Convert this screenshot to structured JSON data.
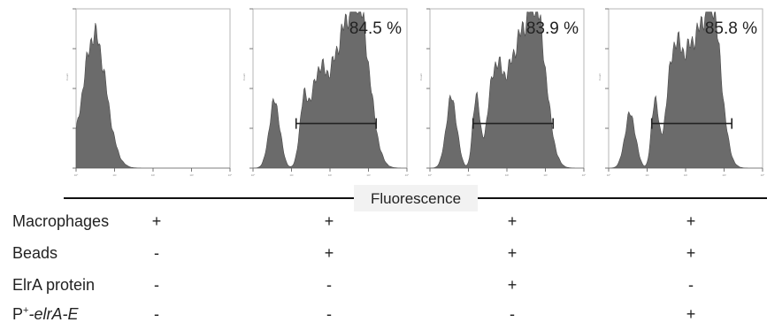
{
  "chart_data": {
    "type": "area",
    "x_axis_label": "Fluorescence",
    "y_axis_label": "Count",
    "x_scale": "log",
    "x_tick_labels": [
      "10⁰",
      "10¹",
      "10²",
      "10³",
      "10⁴"
    ],
    "panels": [
      {
        "gate_percent": null,
        "gate_text": "",
        "gate": null,
        "peaks": [
          {
            "center": 0.12,
            "width": 0.075,
            "height": 0.84
          }
        ]
      },
      {
        "gate_percent": 84.5,
        "gate_text": "84.5 %",
        "gate": {
          "from": 0.28,
          "to": 0.8
        },
        "peaks": [
          {
            "center": 0.14,
            "width": 0.035,
            "height": 0.42
          },
          {
            "center": 0.33,
            "width": 0.028,
            "height": 0.38
          },
          {
            "center": 0.42,
            "width": 0.045,
            "height": 0.46
          },
          {
            "center": 0.57,
            "width": 0.085,
            "height": 0.72
          },
          {
            "center": 0.7,
            "width": 0.065,
            "height": 0.78
          }
        ]
      },
      {
        "gate_percent": 83.9,
        "gate_text": "83.9 %",
        "gate": {
          "from": 0.28,
          "to": 0.8
        },
        "peaks": [
          {
            "center": 0.14,
            "width": 0.035,
            "height": 0.44
          },
          {
            "center": 0.3,
            "width": 0.022,
            "height": 0.45
          },
          {
            "center": 0.42,
            "width": 0.045,
            "height": 0.52
          },
          {
            "center": 0.57,
            "width": 0.08,
            "height": 0.72
          },
          {
            "center": 0.7,
            "width": 0.06,
            "height": 0.8
          }
        ]
      },
      {
        "gate_percent": 85.8,
        "gate_text": "85.8 %",
        "gate": {
          "from": 0.28,
          "to": 0.8
        },
        "peaks": [
          {
            "center": 0.14,
            "width": 0.035,
            "height": 0.34
          },
          {
            "center": 0.3,
            "width": 0.022,
            "height": 0.42
          },
          {
            "center": 0.42,
            "width": 0.045,
            "height": 0.56
          },
          {
            "center": 0.55,
            "width": 0.08,
            "height": 0.75
          },
          {
            "center": 0.68,
            "width": 0.055,
            "height": 0.82
          }
        ]
      }
    ]
  },
  "conditions": {
    "rows": [
      {
        "label": "Macrophages",
        "label_sup": "",
        "label_italic": "",
        "values": [
          "+",
          "+",
          "+",
          "+"
        ]
      },
      {
        "label": "Beads",
        "label_sup": "",
        "label_italic": "",
        "values": [
          "-",
          "+",
          "+",
          "+"
        ]
      },
      {
        "label": "ElrA protein",
        "label_sup": "",
        "label_italic": "",
        "values": [
          "-",
          "-",
          "+",
          "-"
        ]
      },
      {
        "label": "P",
        "label_sup": "+",
        "label_italic": "-elrA-E",
        "values": [
          "-",
          "-",
          "-",
          "+"
        ]
      }
    ]
  }
}
